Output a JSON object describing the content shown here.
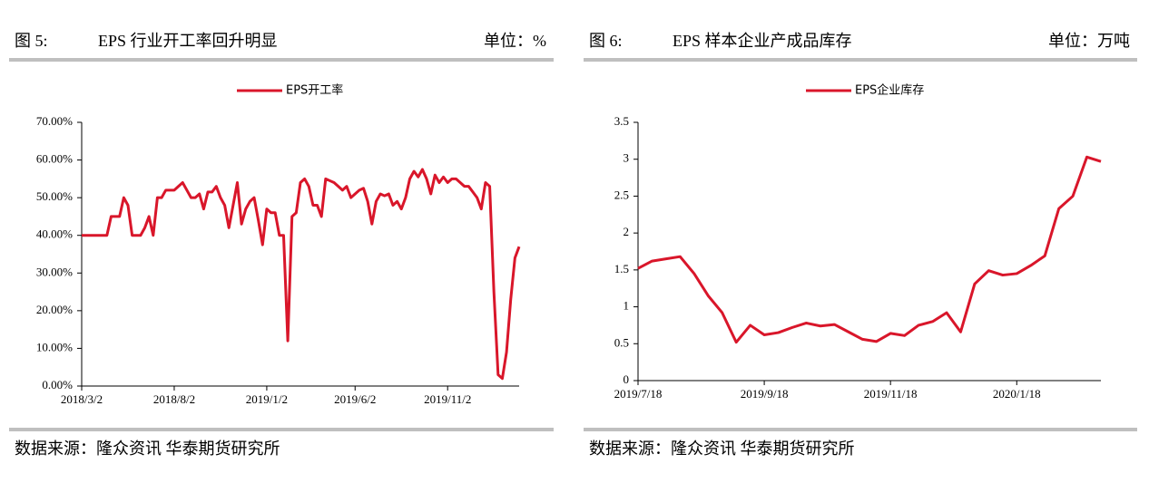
{
  "chart_data": [
    {
      "type": "line",
      "figure_label": "图 5:",
      "title": "EPS 行业开工率回升明显",
      "unit": "单位：%",
      "source": "数据来源：隆众资讯 华泰期货研究所",
      "categories": [
        "2018/3/2",
        null,
        null,
        null,
        null,
        null,
        null,
        null,
        null,
        null,
        null,
        null,
        null,
        null,
        null,
        null,
        null,
        null,
        null,
        null,
        null,
        null,
        "2018/8/2",
        null,
        null,
        null,
        null,
        null,
        null,
        null,
        null,
        null,
        null,
        null,
        null,
        null,
        null,
        null,
        null,
        null,
        null,
        null,
        null,
        null,
        "2019/1/2",
        null,
        null,
        null,
        null,
        null,
        null,
        null,
        null,
        null,
        null,
        null,
        null,
        null,
        null,
        null,
        null,
        null,
        null,
        null,
        null,
        "2019/6/2",
        null,
        null,
        null,
        null,
        null,
        null,
        null,
        null,
        null,
        null,
        null,
        null,
        null,
        null,
        null,
        null,
        null,
        null,
        null,
        null,
        null,
        "2019/11/2",
        null,
        null,
        null,
        null,
        null,
        null,
        null,
        null,
        null,
        null,
        null,
        null,
        null,
        null,
        null,
        null,
        null
      ],
      "series": [
        {
          "name": "EPS开工率",
          "color": "#d9162a",
          "values": [
            40,
            40,
            40,
            40,
            40,
            40,
            40,
            45,
            45,
            45,
            50,
            48,
            40,
            40,
            40,
            42,
            45,
            40,
            50,
            50,
            52,
            52,
            52,
            53,
            54,
            52,
            50,
            50,
            51,
            47,
            51.5,
            51.5,
            53,
            50,
            48,
            42,
            48,
            54,
            43,
            47,
            49,
            50,
            44,
            37.5,
            47,
            46,
            46,
            40,
            40,
            12,
            45,
            46,
            54,
            55,
            53,
            48,
            48,
            45,
            55,
            54.5,
            54,
            53,
            52,
            53,
            50,
            51,
            52,
            52.5,
            49,
            43,
            49,
            51,
            50.5,
            51,
            48,
            49,
            47,
            50,
            55,
            57,
            55.5,
            57.5,
            55,
            51,
            56,
            54,
            55.5,
            54,
            55,
            55,
            54,
            53,
            53,
            51.5,
            50,
            47,
            54,
            53,
            25,
            3,
            2,
            9,
            23,
            34,
            37
          ]
        }
      ],
      "ylim": [
        0,
        70
      ],
      "yticks": [
        {
          "value": 0,
          "label": "0.00%"
        },
        {
          "value": 10,
          "label": "10.00%"
        },
        {
          "value": 20,
          "label": "20.00%"
        },
        {
          "value": 30,
          "label": "30.00%"
        },
        {
          "value": 40,
          "label": "40.00%"
        },
        {
          "value": 50,
          "label": "50.00%"
        },
        {
          "value": 60,
          "label": "60.00%"
        },
        {
          "value": 70,
          "label": "70.00%"
        }
      ]
    },
    {
      "type": "line",
      "figure_label": "图 6:",
      "title": "EPS 样本企业产成品库存",
      "unit": "单位：万吨",
      "source": "数据来源：隆众资讯 华泰期货研究所",
      "categories": [
        "2019/7/18",
        null,
        null,
        null,
        null,
        null,
        null,
        null,
        null,
        "2019/9/18",
        null,
        null,
        null,
        null,
        null,
        null,
        null,
        null,
        "2019/11/18",
        null,
        null,
        null,
        null,
        null,
        null,
        null,
        null,
        "2020/1/18",
        null,
        null,
        null,
        null,
        null,
        null
      ],
      "series": [
        {
          "name": "EPS企业库存",
          "color": "#d9162a",
          "values": [
            1.52,
            1.62,
            1.65,
            1.68,
            1.45,
            1.15,
            0.92,
            0.52,
            0.75,
            0.62,
            0.65,
            0.72,
            0.78,
            0.74,
            0.76,
            0.66,
            0.56,
            0.53,
            0.64,
            0.61,
            0.75,
            0.8,
            0.92,
            0.66,
            1.31,
            1.49,
            1.43,
            1.45,
            1.56,
            1.69,
            2.33,
            2.5,
            3.03,
            2.97
          ]
        }
      ],
      "ylim": [
        0,
        3.5
      ],
      "yticks": [
        0,
        0.5,
        1,
        1.5,
        2,
        2.5,
        3,
        3.5
      ]
    }
  ]
}
